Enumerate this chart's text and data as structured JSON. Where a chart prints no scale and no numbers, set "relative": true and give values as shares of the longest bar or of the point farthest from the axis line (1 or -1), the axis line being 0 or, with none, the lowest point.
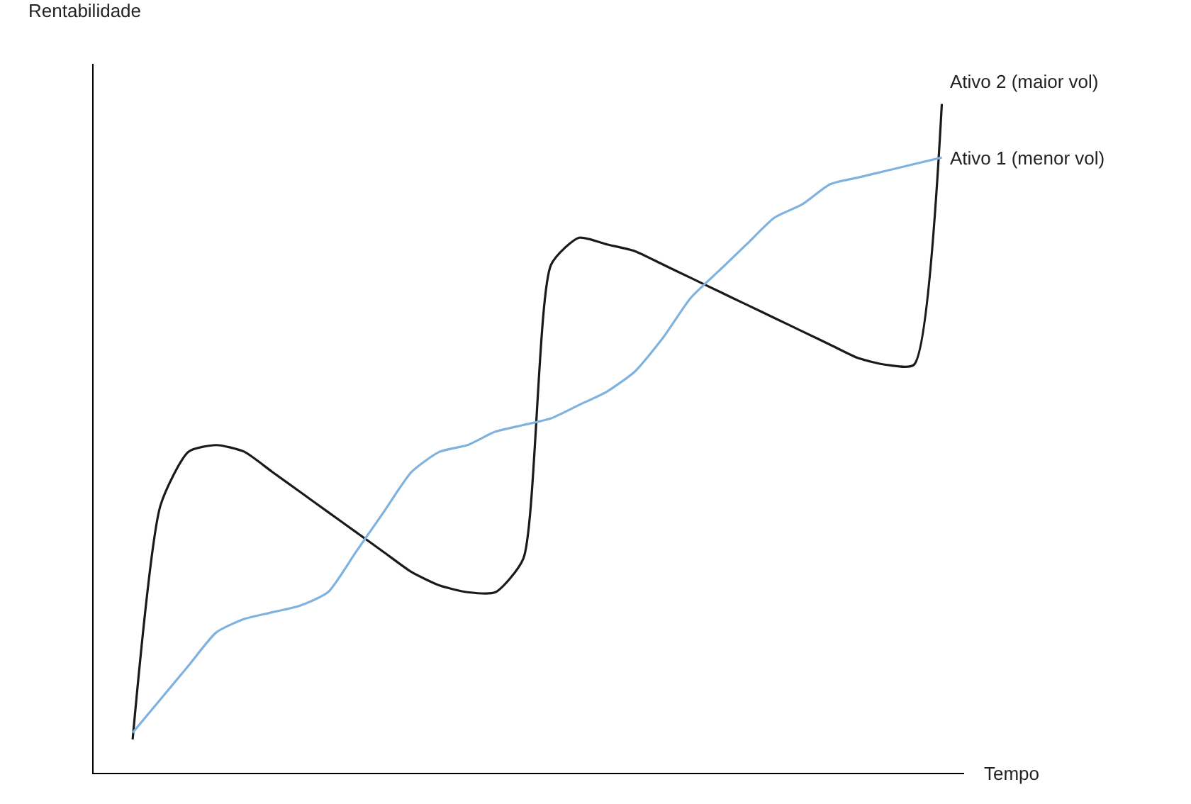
{
  "chart_data": {
    "type": "line",
    "relative": true,
    "xlabel": "Tempo",
    "ylabel": "Rentabilidade",
    "legend": false,
    "grid": false,
    "marker": "none",
    "line_style": "solid",
    "categories": [
      null,
      null,
      null,
      null,
      null,
      null,
      null,
      null,
      null,
      null,
      null,
      null,
      null,
      null,
      null,
      null,
      null,
      null,
      null,
      null,
      null,
      null,
      null,
      null,
      null,
      null,
      null,
      null,
      null,
      null
    ],
    "series": [
      {
        "name": "Ativo 2 (maior vol)",
        "color": "#1a1a1a",
        "values": [
          0.05,
          0.4,
          0.48,
          0.49,
          0.48,
          0.45,
          0.42,
          0.39,
          0.36,
          0.33,
          0.3,
          0.28,
          0.27,
          0.27,
          0.32,
          0.76,
          0.8,
          0.79,
          0.78,
          0.76,
          0.74,
          0.72,
          0.7,
          0.68,
          0.66,
          0.64,
          0.62,
          0.61,
          0.61,
          1
        ]
      },
      {
        "name": "Ativo 1 (menor vol)",
        "color": "#7fb2de",
        "values": [
          0.06,
          0.11,
          0.16,
          0.21,
          0.23,
          0.24,
          0.25,
          0.27,
          0.33,
          0.39,
          0.45,
          0.48,
          0.49,
          0.51,
          0.52,
          0.53,
          0.55,
          0.57,
          0.6,
          0.65,
          0.71,
          0.75,
          0.79,
          0.83,
          0.85,
          0.88,
          0.89,
          0.9,
          0.91,
          0.92
        ]
      }
    ]
  }
}
